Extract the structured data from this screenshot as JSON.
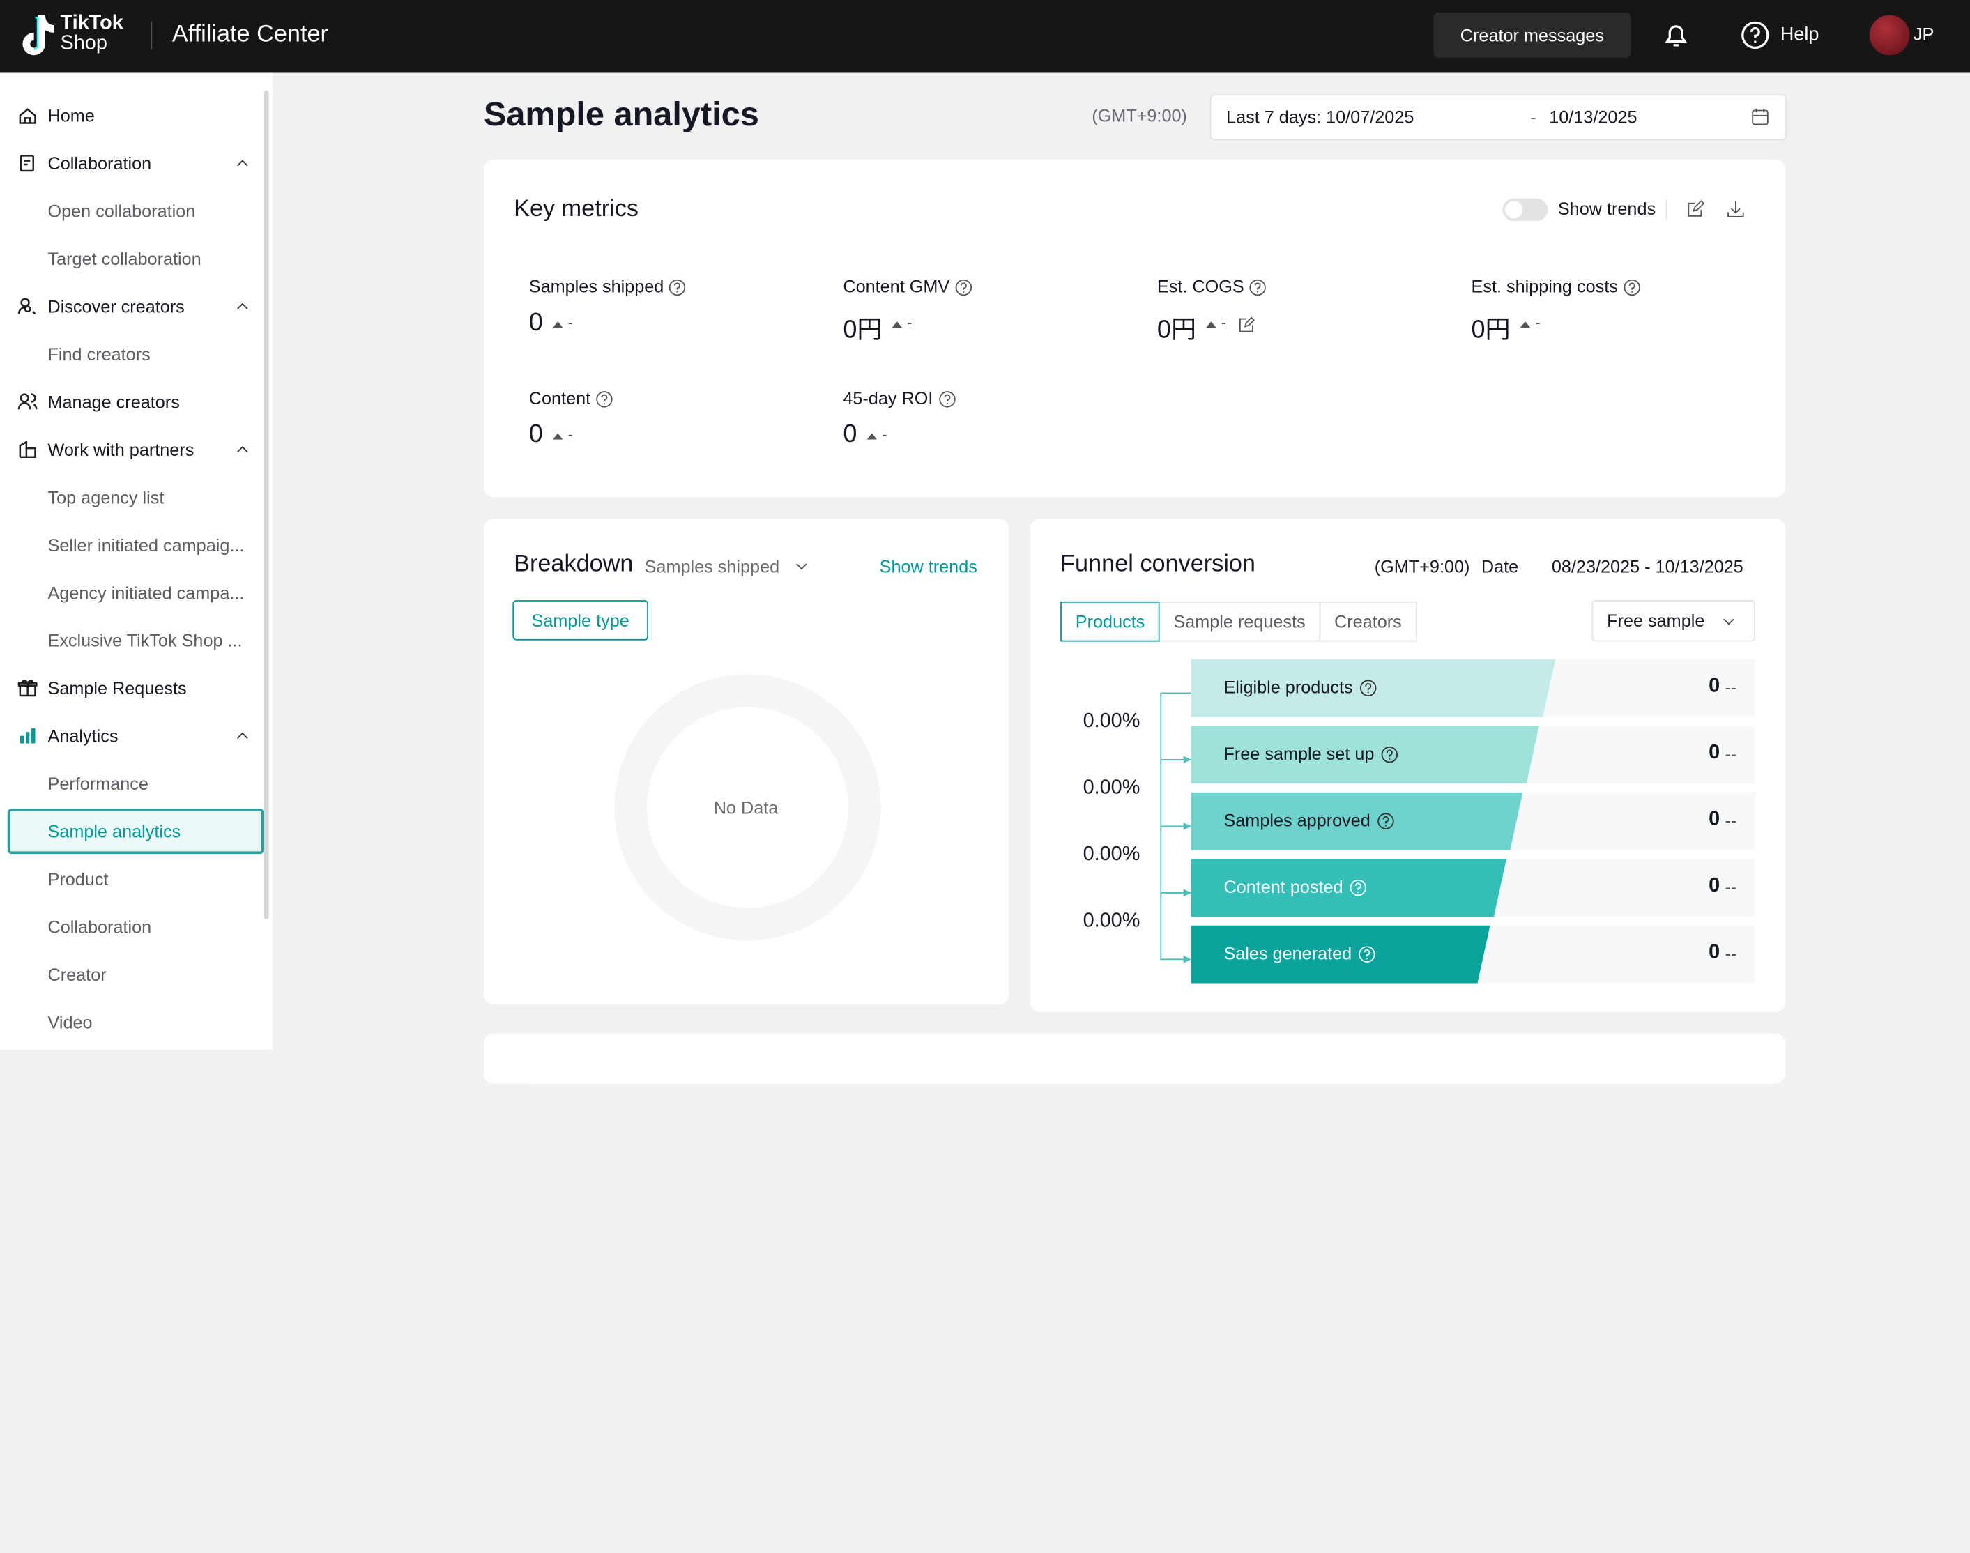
{
  "header": {
    "brand_line1": "TikTok",
    "brand_line2": "Shop",
    "app_title": "Affiliate Center",
    "creator_messages": "Creator messages",
    "help": "Help",
    "avatar": "JP"
  },
  "sidebar": {
    "sections": [
      {
        "label": "Home"
      },
      {
        "label": "Collaboration",
        "children": [
          "Open collaboration",
          "Target collaboration"
        ]
      },
      {
        "label": "Discover creators",
        "children": [
          "Find creators"
        ]
      },
      {
        "label": "Manage creators"
      },
      {
        "label": "Work with partners",
        "children": [
          "Top agency list",
          "Seller initiated campaig...",
          "Agency initiated campa...",
          "Exclusive TikTok Shop ..."
        ]
      },
      {
        "label": "Sample Requests"
      },
      {
        "label": "Analytics",
        "children": [
          "Performance",
          "Sample analytics",
          "Product",
          "Collaboration",
          "Creator",
          "Video"
        ]
      }
    ]
  },
  "page": {
    "title": "Sample analytics",
    "timezone": "(GMT+9:00)",
    "date_start": "Last 7 days: 10/07/2025",
    "date_separator": "-",
    "date_end": "10/13/2025"
  },
  "key_metrics": {
    "title": "Key metrics",
    "show_trends": "Show trends",
    "items": [
      {
        "label": "Samples shipped",
        "value": "0",
        "change": "-"
      },
      {
        "label": "Content GMV",
        "value": "0円",
        "change": "-"
      },
      {
        "label": "Est. COGS",
        "value": "0円",
        "change": "-"
      },
      {
        "label": "Est. shipping costs",
        "value": "0円",
        "change": "-"
      },
      {
        "label": "Content",
        "value": "0",
        "change": "-"
      },
      {
        "label": "45-day ROI",
        "value": "0",
        "change": "-"
      }
    ]
  },
  "breakdown": {
    "title": "Breakdown",
    "metric": "Samples shipped",
    "show_trends": "Show trends",
    "tab": "Sample type",
    "empty": "No Data"
  },
  "funnel": {
    "title": "Funnel conversion",
    "timezone": "(GMT+9:00)",
    "date_label": "Date",
    "date_range": "08/23/2025 - 10/13/2025",
    "tabs": [
      "Products",
      "Sample requests",
      "Creators"
    ],
    "dropdown": "Free sample",
    "stages": [
      {
        "label": "Eligible products",
        "value": "0",
        "change": "--"
      },
      {
        "label": "Free sample set up",
        "value": "0",
        "change": "--"
      },
      {
        "label": "Samples approved",
        "value": "0",
        "change": "--"
      },
      {
        "label": "Content posted",
        "value": "0",
        "change": "--"
      },
      {
        "label": "Sales generated",
        "value": "0",
        "change": "--"
      }
    ],
    "rates": [
      "0.00%",
      "0.00%",
      "0.00%",
      "0.00%"
    ]
  }
}
